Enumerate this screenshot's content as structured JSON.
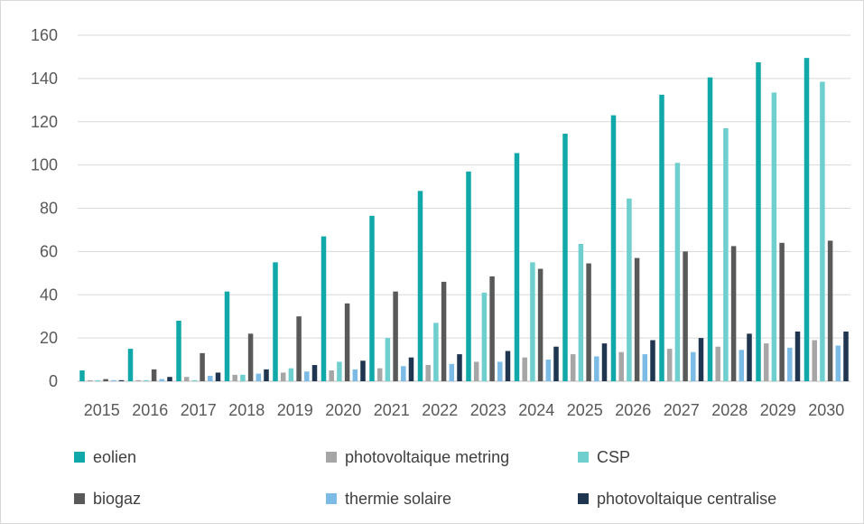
{
  "chart_data": {
    "type": "bar",
    "categories": [
      "2015",
      "2016",
      "2017",
      "2018",
      "2019",
      "2020",
      "2021",
      "2022",
      "2023",
      "2024",
      "2025",
      "2026",
      "2027",
      "2028",
      "2029",
      "2030"
    ],
    "series": [
      {
        "name": "eolien",
        "color": "#10a8a8",
        "values": [
          5,
          15,
          28,
          41.5,
          55,
          67,
          76.5,
          88,
          97,
          105.5,
          114.5,
          123,
          132.5,
          140.5,
          147.5,
          149.5
        ]
      },
      {
        "name": "photovoltaique metring",
        "color": "#a6a6a6",
        "values": [
          0.5,
          0.5,
          2,
          3,
          4,
          5,
          6,
          7.5,
          9,
          11,
          12.5,
          13.5,
          15,
          16,
          17.5,
          19
        ]
      },
      {
        "name": "CSP",
        "color": "#6fcfcf",
        "values": [
          0.5,
          0.5,
          0.5,
          3,
          6,
          9,
          20,
          27,
          41,
          55,
          63.5,
          84.5,
          101,
          117,
          133.5,
          138.5
        ]
      },
      {
        "name": "biogaz",
        "color": "#595959",
        "values": [
          1,
          5.5,
          13,
          22,
          30,
          36,
          41.5,
          46,
          48.5,
          52,
          54.5,
          57,
          60,
          62.5,
          64,
          65
        ]
      },
      {
        "name": "thermie solaire",
        "color": "#7bbbe6",
        "values": [
          0.5,
          1,
          2.5,
          3.5,
          4.5,
          5.5,
          7,
          8,
          9,
          10,
          11.5,
          12.5,
          13.5,
          14.5,
          15.5,
          16.5
        ]
      },
      {
        "name": "photovoltaique centralise",
        "color": "#1f3550",
        "values": [
          0.5,
          2,
          4,
          5.5,
          7.5,
          9.5,
          11,
          12.5,
          14,
          16,
          17.5,
          19,
          20,
          22,
          23,
          23
        ]
      }
    ],
    "yticks": [
      "0",
      "20",
      "40",
      "60",
      "80",
      "100",
      "120",
      "140",
      "160"
    ],
    "ylim": [
      0,
      160
    ],
    "grid": true,
    "legend_position": "bottom"
  }
}
